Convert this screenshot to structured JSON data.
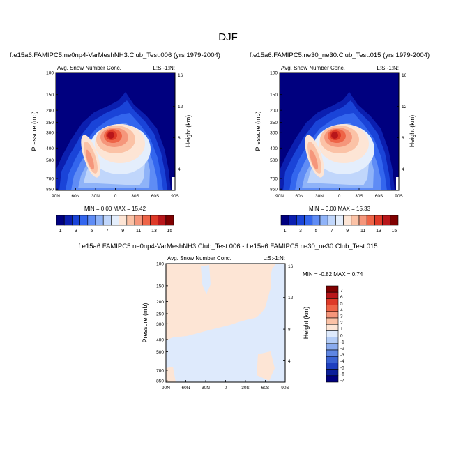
{
  "figure_title": "DJF",
  "colors": {
    "colorbar_abs": [
      "#00007f",
      "#0b1fb0",
      "#1a44d8",
      "#3366ee",
      "#5f8cf5",
      "#8fb3f8",
      "#c0d6fb",
      "#e4eefc",
      "#fde5d5",
      "#fbc2a6",
      "#f5967b",
      "#ee6447",
      "#de3a28",
      "#b8161a",
      "#800000"
    ],
    "colorbar_diff": [
      "#800000",
      "#b8161a",
      "#de3a28",
      "#ee6447",
      "#f5967b",
      "#fbc2a6",
      "#fde5d5",
      "#deeafc",
      "#b3ccf6",
      "#8aabee",
      "#5f86e2",
      "#3a62d2",
      "#1e3fbf",
      "#0b1f9a",
      "#00007f"
    ]
  },
  "panels": [
    {
      "title": "f.e15a6.FAMIPC5.ne0np4-VarMeshNH3.Club_Test.006 (yrs 1979-2004)",
      "subtitle_left": "Avg. Snow Number Conc.",
      "subtitle_right": "L:S:-1:N:",
      "min_max": "MIN =  0.00  MAX = 15.42"
    },
    {
      "title": "f.e15a6.FAMIPC5.ne30_ne30.Club_Test.015 (yrs 1979-2004)",
      "subtitle_left": "Avg. Snow Number Conc.",
      "subtitle_right": "L:S:-1:N:",
      "min_max": "MIN =  0.00  MAX = 15.33"
    },
    {
      "title": "f.e15a6.FAMIPC5.ne0np4-VarMeshNH3.Club_Test.006 - f.e15a6.FAMIPC5.ne30_ne30.Club_Test.015",
      "subtitle_left": "Avg. Snow Number Conc.",
      "subtitle_right": "L:S:-1:N:",
      "min_max": "MIN = -0.82  MAX =  0.74"
    }
  ],
  "chart_data": [
    {
      "type": "heatmap",
      "title": "f.e15a6.FAMIPC5.ne0np4-VarMeshNH3.Club_Test.006 (yrs 1979-2004)",
      "ylabel": "Pressure (mb)",
      "y2label": "Height (km)",
      "x_ticks": [
        "90N",
        "60N",
        "30N",
        "0",
        "30S",
        "60S",
        "90S"
      ],
      "y_ticks": [
        "100",
        "150",
        "200",
        "250",
        "300",
        "400",
        "500",
        "700",
        "850"
      ],
      "y2_ticks": [
        "16",
        "12",
        "8",
        "4"
      ],
      "colorbar_labels": [
        "1",
        "3",
        "5",
        "7",
        "9",
        "11",
        "13",
        "15"
      ],
      "min": 0.0,
      "max": 15.42
    },
    {
      "type": "heatmap",
      "title": "f.e15a6.FAMIPC5.ne30_ne30.Club_Test.015 (yrs 1979-2004)",
      "ylabel": "Pressure (mb)",
      "y2label": "Height (km)",
      "x_ticks": [
        "90N",
        "60N",
        "30N",
        "0",
        "30S",
        "60S",
        "90S"
      ],
      "y_ticks": [
        "100",
        "150",
        "200",
        "250",
        "300",
        "400",
        "500",
        "700",
        "850"
      ],
      "y2_ticks": [
        "16",
        "12",
        "8",
        "4"
      ],
      "colorbar_labels": [
        "1",
        "3",
        "5",
        "7",
        "9",
        "11",
        "13",
        "15"
      ],
      "min": 0.0,
      "max": 15.33
    },
    {
      "type": "heatmap",
      "title": "f.e15a6.FAMIPC5.ne0np4-VarMeshNH3.Club_Test.006 - f.e15a6.FAMIPC5.ne30_ne30.Club_Test.015",
      "ylabel": "Pressure (mb)",
      "y2label": "Height (km)",
      "x_ticks": [
        "90N",
        "60N",
        "30N",
        "0",
        "30S",
        "60S",
        "90S"
      ],
      "y_ticks": [
        "100",
        "150",
        "200",
        "250",
        "300",
        "400",
        "500",
        "700",
        "850"
      ],
      "y2_ticks": [
        "16",
        "12",
        "8",
        "4"
      ],
      "colorbar_labels": [
        "7",
        "6",
        "5",
        "4",
        "3",
        "2",
        "1",
        "0",
        "-1",
        "-2",
        "-3",
        "-4",
        "-5",
        "-6",
        "-7"
      ],
      "min": -0.82,
      "max": 0.74
    }
  ]
}
